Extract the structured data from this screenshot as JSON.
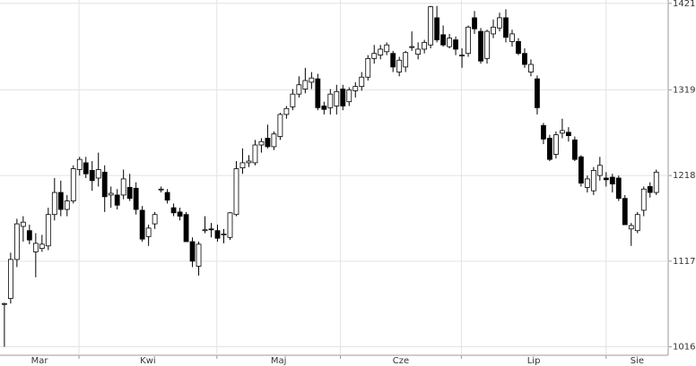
{
  "chart_data": {
    "type": "candlestick",
    "open": [
      1066,
      1073,
      1119,
      1158,
      1153,
      1128,
      1132,
      1135,
      1172,
      1198,
      1178,
      1188,
      1225,
      1233,
      1224,
      1215,
      1222,
      1195,
      1195,
      1195,
      1204,
      1203,
      1177,
      1146,
      1161,
      1201,
      1198,
      1180,
      1175,
      1172,
      1140,
      1111,
      1153,
      1155,
      1153,
      1148,
      1145,
      1172,
      1227,
      1233,
      1233,
      1254,
      1262,
      1252,
      1264,
      1290,
      1299,
      1314,
      1320,
      1328,
      1332,
      1300,
      1298,
      1300,
      1320,
      1305,
      1318,
      1323,
      1334,
      1356,
      1360,
      1364,
      1362,
      1340,
      1346,
      1370,
      1361,
      1367,
      1372,
      1404,
      1384,
      1370,
      1378,
      1360,
      1362,
      1404,
      1388,
      1356,
      1385,
      1392,
      1404,
      1376,
      1376,
      1362,
      1340,
      1332,
      1277,
      1262,
      1243,
      1268,
      1269,
      1260,
      1240,
      1204,
      1200,
      1218,
      1215,
      1216,
      1215,
      1191,
      1155,
      1153,
      1177,
      1205,
      1198
    ],
    "high": [
      1068,
      1127,
      1167,
      1170,
      1160,
      1150,
      1148,
      1180,
      1215,
      1212,
      1195,
      1230,
      1240,
      1240,
      1235,
      1245,
      1230,
      1205,
      1202,
      1225,
      1220,
      1210,
      1182,
      1160,
      1175,
      1205,
      1202,
      1185,
      1180,
      1175,
      1145,
      1140,
      1170,
      1162,
      1160,
      1155,
      1175,
      1235,
      1250,
      1242,
      1260,
      1262,
      1278,
      1270,
      1292,
      1300,
      1320,
      1335,
      1345,
      1340,
      1338,
      1305,
      1320,
      1325,
      1325,
      1322,
      1328,
      1340,
      1360,
      1372,
      1372,
      1375,
      1365,
      1358,
      1365,
      1388,
      1375,
      1378,
      1418,
      1418,
      1395,
      1385,
      1382,
      1368,
      1395,
      1412,
      1392,
      1390,
      1402,
      1410,
      1414,
      1390,
      1380,
      1368,
      1355,
      1336,
      1280,
      1266,
      1270,
      1285,
      1275,
      1264,
      1242,
      1218,
      1228,
      1240,
      1222,
      1220,
      1218,
      1195,
      1162,
      1175,
      1205,
      1210,
      1225
    ],
    "low": [
      1016,
      1067,
      1110,
      1140,
      1137,
      1098,
      1128,
      1130,
      1165,
      1170,
      1170,
      1185,
      1218,
      1215,
      1200,
      1205,
      1175,
      1180,
      1178,
      1190,
      1188,
      1172,
      1140,
      1135,
      1155,
      1198,
      1185,
      1170,
      1165,
      1140,
      1110,
      1100,
      1150,
      1145,
      1140,
      1138,
      1142,
      1170,
      1220,
      1228,
      1230,
      1245,
      1250,
      1248,
      1260,
      1285,
      1295,
      1310,
      1315,
      1320,
      1295,
      1290,
      1290,
      1290,
      1295,
      1300,
      1310,
      1318,
      1330,
      1350,
      1355,
      1360,
      1340,
      1335,
      1340,
      1365,
      1355,
      1362,
      1368,
      1375,
      1370,
      1368,
      1360,
      1345,
      1358,
      1385,
      1350,
      1350,
      1380,
      1388,
      1375,
      1370,
      1360,
      1345,
      1335,
      1290,
      1255,
      1235,
      1238,
      1262,
      1258,
      1235,
      1205,
      1198,
      1195,
      1212,
      1205,
      1198,
      1188,
      1160,
      1135,
      1150,
      1170,
      1192,
      1195
    ],
    "close": [
      1067,
      1119,
      1161,
      1163,
      1142,
      1138,
      1137,
      1172,
      1198,
      1178,
      1188,
      1226,
      1237,
      1220,
      1212,
      1225,
      1193,
      1197,
      1183,
      1214,
      1191,
      1178,
      1143,
      1156,
      1172,
      1202,
      1189,
      1174,
      1170,
      1140,
      1117,
      1137,
      1154,
      1154,
      1144,
      1149,
      1174,
      1226,
      1233,
      1235,
      1254,
      1258,
      1252,
      1267,
      1290,
      1297,
      1314,
      1325,
      1330,
      1333,
      1298,
      1296,
      1314,
      1317,
      1300,
      1319,
      1323,
      1334,
      1356,
      1362,
      1367,
      1372,
      1346,
      1354,
      1363,
      1370,
      1367,
      1375,
      1417,
      1378,
      1372,
      1380,
      1367,
      1360,
      1393,
      1391,
      1353,
      1388,
      1393,
      1404,
      1381,
      1385,
      1362,
      1349,
      1349,
      1298,
      1261,
      1237,
      1266,
      1271,
      1265,
      1237,
      1209,
      1214,
      1224,
      1230,
      1213,
      1208,
      1191,
      1160,
      1159,
      1172,
      1202,
      1198,
      1222
    ],
    "months": [
      {
        "label": "Mar",
        "span": [
          -0.7,
          11.9
        ]
      },
      {
        "label": "Kwi",
        "span": [
          11.9,
          33.9
        ]
      },
      {
        "label": "Maj",
        "span": [
          33.9,
          53.6
        ]
      },
      {
        "label": "Cze",
        "span": [
          53.6,
          72.9
        ]
      },
      {
        "label": "Lip",
        "span": [
          72.9,
          96
        ]
      },
      {
        "label": "Sie",
        "span": [
          96,
          105.9
        ]
      }
    ],
    "xlim": [
      -0.7,
      105.9
    ],
    "ylim": [
      1006,
      1425
    ],
    "yticks": [
      1016,
      1117,
      1218,
      1319,
      1421
    ],
    "grid": true,
    "up_color": "#ffffff",
    "down_color": "#000000"
  }
}
